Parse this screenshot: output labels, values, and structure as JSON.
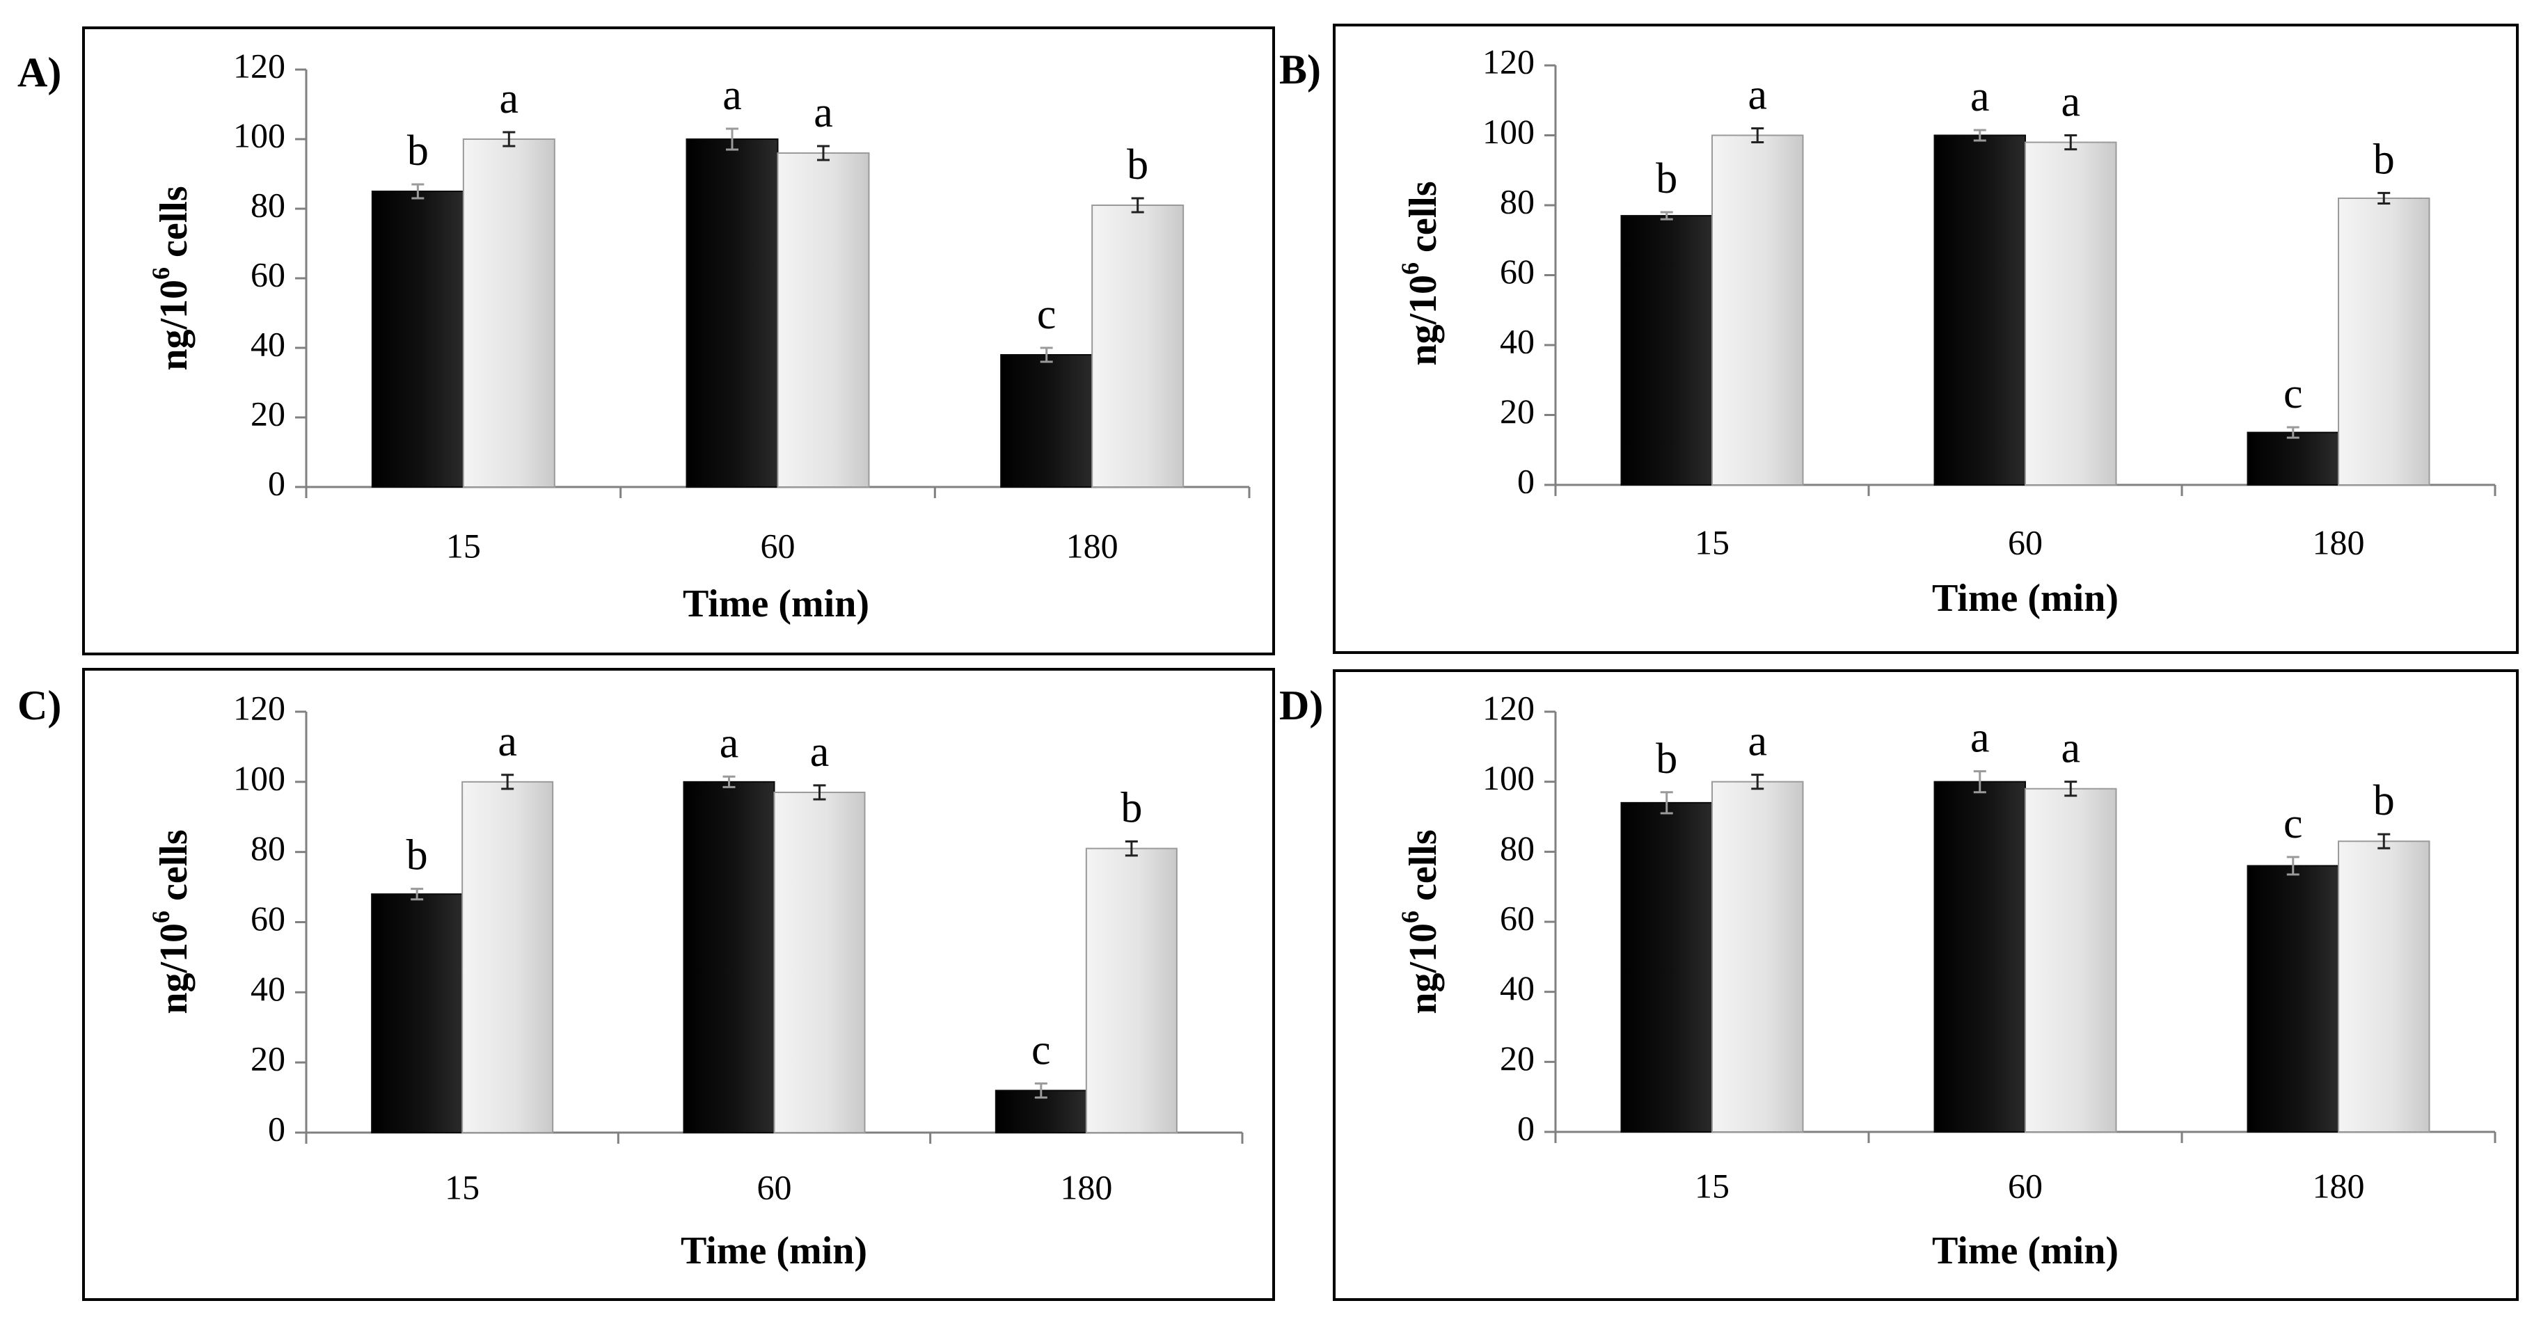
{
  "colors": {
    "series_dark": "#0a0a0a",
    "series_light": "#e6e6e6",
    "axis": "#808080",
    "frame": "#000000"
  },
  "chart_data": [
    {
      "panel": "A)",
      "type": "bar",
      "categories": [
        "15",
        "60",
        "180"
      ],
      "xlabel": "Time (min)",
      "ylabel": "ng/10",
      "ylabel_sup": "6",
      "ylabel_tail": " cells",
      "ylim": [
        0,
        120
      ],
      "yticks": [
        "0",
        "20",
        "40",
        "60",
        "80",
        "100",
        "120"
      ],
      "series": [
        {
          "name": "dark",
          "values": [
            85,
            100,
            38
          ],
          "errors": [
            2,
            3,
            2
          ],
          "labels": [
            "b",
            "a",
            "c"
          ]
        },
        {
          "name": "light",
          "values": [
            100,
            96,
            81
          ],
          "errors": [
            2,
            2,
            2
          ],
          "labels": [
            "a",
            "a",
            "b"
          ]
        }
      ]
    },
    {
      "panel": "B)",
      "type": "bar",
      "categories": [
        "15",
        "60",
        "180"
      ],
      "xlabel": "Time (min)",
      "ylabel": "ng/10",
      "ylabel_sup": "6",
      "ylabel_tail": " cells",
      "ylim": [
        0,
        120
      ],
      "yticks": [
        "0",
        "20",
        "40",
        "60",
        "80",
        "100",
        "120"
      ],
      "series": [
        {
          "name": "dark",
          "values": [
            77,
            100,
            15
          ],
          "errors": [
            1,
            1.5,
            1.5
          ],
          "labels": [
            "b",
            "a",
            "c"
          ]
        },
        {
          "name": "light",
          "values": [
            100,
            98,
            82
          ],
          "errors": [
            2,
            2,
            1.5
          ],
          "labels": [
            "a",
            "a",
            "b"
          ]
        }
      ]
    },
    {
      "panel": "C)",
      "type": "bar",
      "categories": [
        "15",
        "60",
        "180"
      ],
      "xlabel": "Time (min)",
      "ylabel": "ng/10",
      "ylabel_sup": "6",
      "ylabel_tail": " cells",
      "ylim": [
        0,
        120
      ],
      "yticks": [
        "0",
        "20",
        "40",
        "60",
        "80",
        "100",
        "120"
      ],
      "series": [
        {
          "name": "dark",
          "values": [
            68,
            100,
            12
          ],
          "errors": [
            1.5,
            1.5,
            2
          ],
          "labels": [
            "b",
            "a",
            "c"
          ]
        },
        {
          "name": "light",
          "values": [
            100,
            97,
            81
          ],
          "errors": [
            2,
            2,
            2
          ],
          "labels": [
            "a",
            "a",
            "b"
          ]
        }
      ]
    },
    {
      "panel": "D)",
      "type": "bar",
      "categories": [
        "15",
        "60",
        "180"
      ],
      "xlabel": "Time (min)",
      "ylabel": "ng/10",
      "ylabel_sup": "6",
      "ylabel_tail": " cells",
      "ylim": [
        0,
        120
      ],
      "yticks": [
        "0",
        "20",
        "40",
        "60",
        "80",
        "100",
        "120"
      ],
      "series": [
        {
          "name": "dark",
          "values": [
            94,
            100,
            76
          ],
          "errors": [
            3,
            3,
            2.5
          ],
          "labels": [
            "b",
            "a",
            "c"
          ]
        },
        {
          "name": "light",
          "values": [
            100,
            98,
            83
          ],
          "errors": [
            2,
            2,
            2
          ],
          "labels": [
            "a",
            "a",
            "b"
          ]
        }
      ]
    }
  ]
}
